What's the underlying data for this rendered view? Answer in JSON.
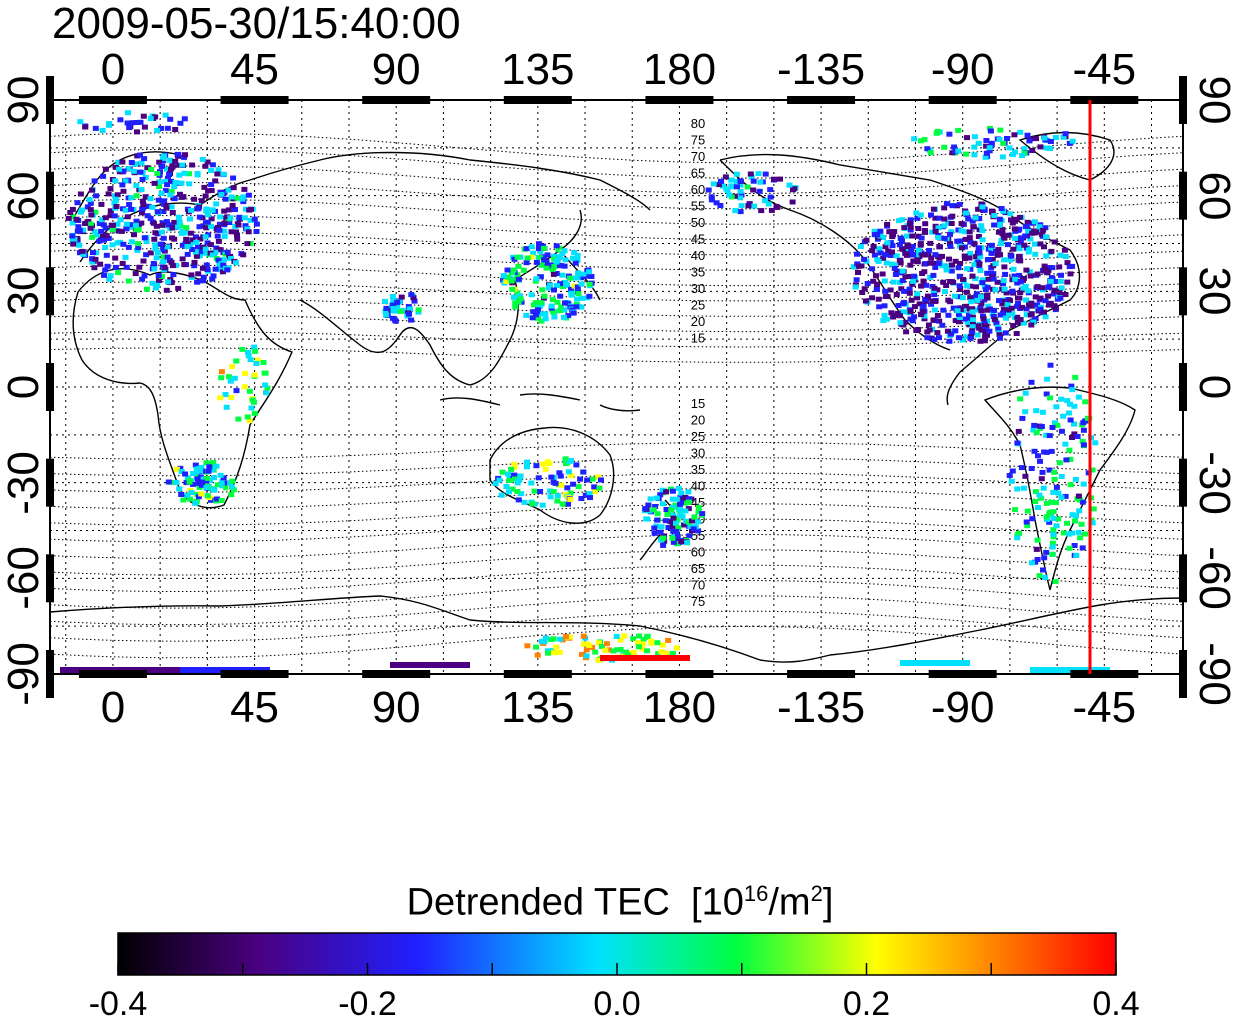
{
  "timestamp": "2009-05-30/15:40:00",
  "map": {
    "top_ticks": [
      "0",
      "45",
      "90",
      "135",
      "180",
      "-135",
      "-90",
      "-45"
    ],
    "bottom_ticks": [
      "0",
      "45",
      "90",
      "135",
      "180",
      "-135",
      "-90",
      "-45"
    ],
    "left_ticks": [
      "90",
      "60",
      "30",
      "0",
      "-30",
      "-60",
      "-90"
    ],
    "right_ticks": [
      "90",
      "60",
      "30",
      "0",
      "-30",
      "-60",
      "-90"
    ],
    "lon_range": [
      -20,
      340
    ],
    "lat_range": [
      -90,
      90
    ],
    "gridlines": true,
    "terminator_longitude": "-53",
    "magnetic_contours_north": [
      "80",
      "75",
      "70",
      "65",
      "60",
      "55",
      "50",
      "45",
      "40",
      "35",
      "30",
      "25",
      "20",
      "15"
    ],
    "magnetic_contours_south": [
      "15",
      "20",
      "25",
      "30",
      "35",
      "40",
      "45",
      "50",
      "55",
      "60",
      "65",
      "70",
      "75"
    ]
  },
  "colorbar": {
    "title_main": "Detrended TEC",
    "title_unit_pre": "[10",
    "title_unit_sup1": "16",
    "title_unit_mid": "/m",
    "title_unit_sup2": "2",
    "title_unit_post": "]",
    "ticks": [
      "-0.4",
      "-0.2",
      "0.0",
      "0.2",
      "0.4"
    ],
    "range": [
      -0.4,
      0.4
    ],
    "colors": [
      "#000000",
      "#4a0080",
      "#2020ff",
      "#00e0ff",
      "#00ff40",
      "#ffff00",
      "#ff8000",
      "#ff0000"
    ]
  },
  "colors": {
    "terminator": "#ff0000",
    "coastline": "#000000"
  }
}
